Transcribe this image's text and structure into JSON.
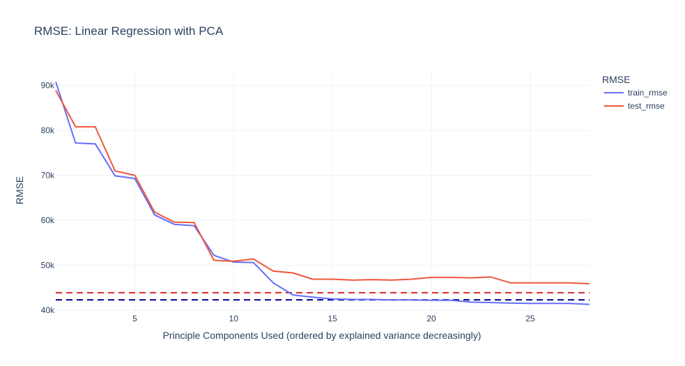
{
  "chart_data": {
    "type": "line",
    "title": "RMSE: Linear Regression with PCA",
    "xlabel": "Principle Components Used (ordered by explained variance decreasingly)",
    "ylabel": "RMSE",
    "xlim": [
      1,
      28
    ],
    "ylim": [
      40000,
      93500
    ],
    "x_ticks": [
      5,
      10,
      15,
      20,
      25
    ],
    "y_ticks": [
      {
        "value": 40000,
        "label": "40k"
      },
      {
        "value": 50000,
        "label": "50k"
      },
      {
        "value": 60000,
        "label": "60k"
      },
      {
        "value": 70000,
        "label": "70k"
      },
      {
        "value": 80000,
        "label": "80k"
      },
      {
        "value": 90000,
        "label": "90k"
      }
    ],
    "grid": true,
    "legend": {
      "title": "RMSE",
      "placement": "top-right"
    },
    "x": [
      1,
      2,
      3,
      4,
      5,
      6,
      7,
      8,
      9,
      10,
      11,
      12,
      13,
      14,
      15,
      16,
      17,
      18,
      19,
      20,
      21,
      22,
      23,
      24,
      25,
      26,
      27,
      28
    ],
    "series": [
      {
        "name": "train_rmse",
        "color": "#636efa",
        "values": [
          90800,
          77200,
          77000,
          69900,
          69300,
          61200,
          59100,
          58800,
          52200,
          50700,
          50600,
          46100,
          43400,
          42900,
          42500,
          42400,
          42400,
          42300,
          42300,
          42200,
          42200,
          41800,
          41700,
          41600,
          41500,
          41500,
          41500,
          41300
        ]
      },
      {
        "name": "test_rmse",
        "color": "#ef553b",
        "values": [
          88900,
          80800,
          80800,
          71000,
          70000,
          61800,
          59600,
          59500,
          51100,
          50900,
          51400,
          48700,
          48300,
          46900,
          46900,
          46700,
          46800,
          46700,
          46900,
          47300,
          47300,
          47200,
          47400,
          46100,
          46100,
          46100,
          46100,
          45900
        ]
      }
    ],
    "reference_lines": [
      {
        "y": 43900,
        "color": "#d62728",
        "style": "dashed"
      },
      {
        "y": 42300,
        "color": "#00008b",
        "style": "dashed"
      }
    ]
  }
}
